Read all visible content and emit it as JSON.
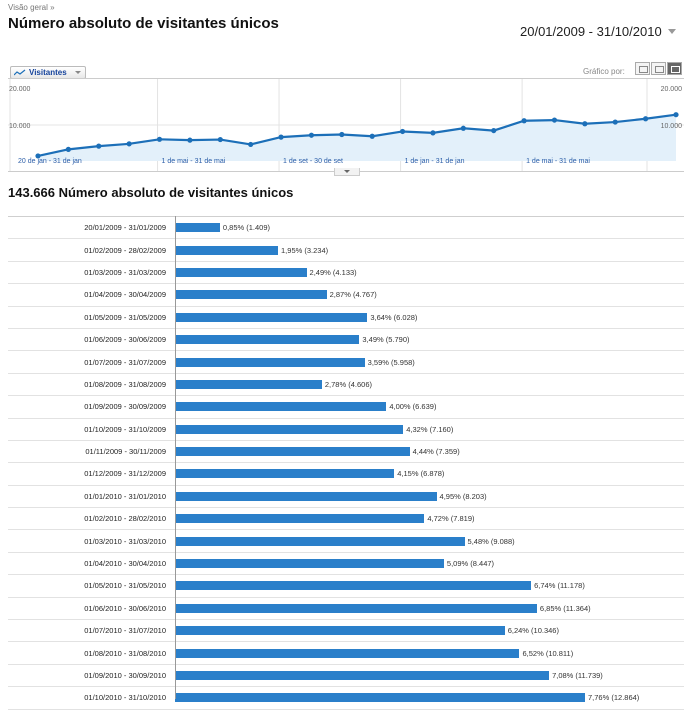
{
  "header": {
    "breadcrumb": "Visão geral »",
    "title": "Número absoluto de visitantes únicos",
    "date_range": "20/01/2009 - 31/10/2010"
  },
  "toolbar": {
    "metric_label": "Visitantes",
    "graph_by_label": "Gráfico por:"
  },
  "chart_data": {
    "type": "line",
    "x": [
      "jan 2009",
      "fev 2009",
      "mar 2009",
      "abr 2009",
      "mai 2009",
      "jun 2009",
      "jul 2009",
      "ago 2009",
      "set 2009",
      "out 2009",
      "nov 2009",
      "dez 2009",
      "jan 2010",
      "fev 2010",
      "mar 2010",
      "abr 2010",
      "mai 2010",
      "jun 2010",
      "jul 2010",
      "ago 2010",
      "set 2010",
      "out 2010"
    ],
    "values": [
      1409,
      3234,
      4133,
      4767,
      6028,
      5790,
      5958,
      4606,
      6639,
      7160,
      7359,
      6878,
      8203,
      7819,
      9088,
      8447,
      11178,
      11364,
      10346,
      10811,
      11739,
      12864
    ],
    "ylim": [
      0,
      20000
    ],
    "yticks": [
      "20.000",
      "10.000"
    ],
    "xticks": [
      "20 de jan - 31 de jan",
      "1 de mai - 31 de mai",
      "1 de set - 30 de set",
      "1 de jan - 31 de jan",
      "1 de mai - 31 de mai"
    ],
    "color": "#1c6fb8",
    "fill": "#e3f0fa"
  },
  "summary": {
    "title": "143.666 Número absoluto de visitantes únicos"
  },
  "rows": [
    {
      "period": "20/01/2009 - 31/01/2009",
      "pct": 0.85,
      "text": "0,85% (1.409)"
    },
    {
      "period": "01/02/2009 - 28/02/2009",
      "pct": 1.95,
      "text": "1,95% (3.234)"
    },
    {
      "period": "01/03/2009 - 31/03/2009",
      "pct": 2.49,
      "text": "2,49% (4.133)"
    },
    {
      "period": "01/04/2009 - 30/04/2009",
      "pct": 2.87,
      "text": "2,87% (4.767)"
    },
    {
      "period": "01/05/2009 - 31/05/2009",
      "pct": 3.64,
      "text": "3,64% (6.028)"
    },
    {
      "period": "01/06/2009 - 30/06/2009",
      "pct": 3.49,
      "text": "3,49% (5.790)"
    },
    {
      "period": "01/07/2009 - 31/07/2009",
      "pct": 3.59,
      "text": "3,59% (5.958)"
    },
    {
      "period": "01/08/2009 - 31/08/2009",
      "pct": 2.78,
      "text": "2,78% (4.606)"
    },
    {
      "period": "01/09/2009 - 30/09/2009",
      "pct": 4.0,
      "text": "4,00% (6.639)"
    },
    {
      "period": "01/10/2009 - 31/10/2009",
      "pct": 4.32,
      "text": "4,32% (7.160)"
    },
    {
      "period": "01/11/2009 - 30/11/2009",
      "pct": 4.44,
      "text": "4,44% (7.359)"
    },
    {
      "period": "01/12/2009 - 31/12/2009",
      "pct": 4.15,
      "text": "4,15% (6.878)"
    },
    {
      "period": "01/01/2010 - 31/01/2010",
      "pct": 4.95,
      "text": "4,95% (8.203)"
    },
    {
      "period": "01/02/2010 - 28/02/2010",
      "pct": 4.72,
      "text": "4,72% (7.819)"
    },
    {
      "period": "01/03/2010 - 31/03/2010",
      "pct": 5.48,
      "text": "5,48% (9.088)"
    },
    {
      "period": "01/04/2010 - 30/04/2010",
      "pct": 5.09,
      "text": "5,09% (8.447)"
    },
    {
      "period": "01/05/2010 - 31/05/2010",
      "pct": 6.74,
      "text": "6,74% (11.178)"
    },
    {
      "period": "01/06/2010 - 30/06/2010",
      "pct": 6.85,
      "text": "6,85% (11.364)"
    },
    {
      "period": "01/07/2010 - 31/07/2010",
      "pct": 6.24,
      "text": "6,24% (10.346)"
    },
    {
      "period": "01/08/2010 - 31/08/2010",
      "pct": 6.52,
      "text": "6,52% (10.811)"
    },
    {
      "period": "01/09/2010 - 30/09/2010",
      "pct": 7.08,
      "text": "7,08% (11.739)"
    },
    {
      "period": "01/10/2010 - 31/10/2010",
      "pct": 7.76,
      "text": "7,76% (12.864)"
    }
  ]
}
